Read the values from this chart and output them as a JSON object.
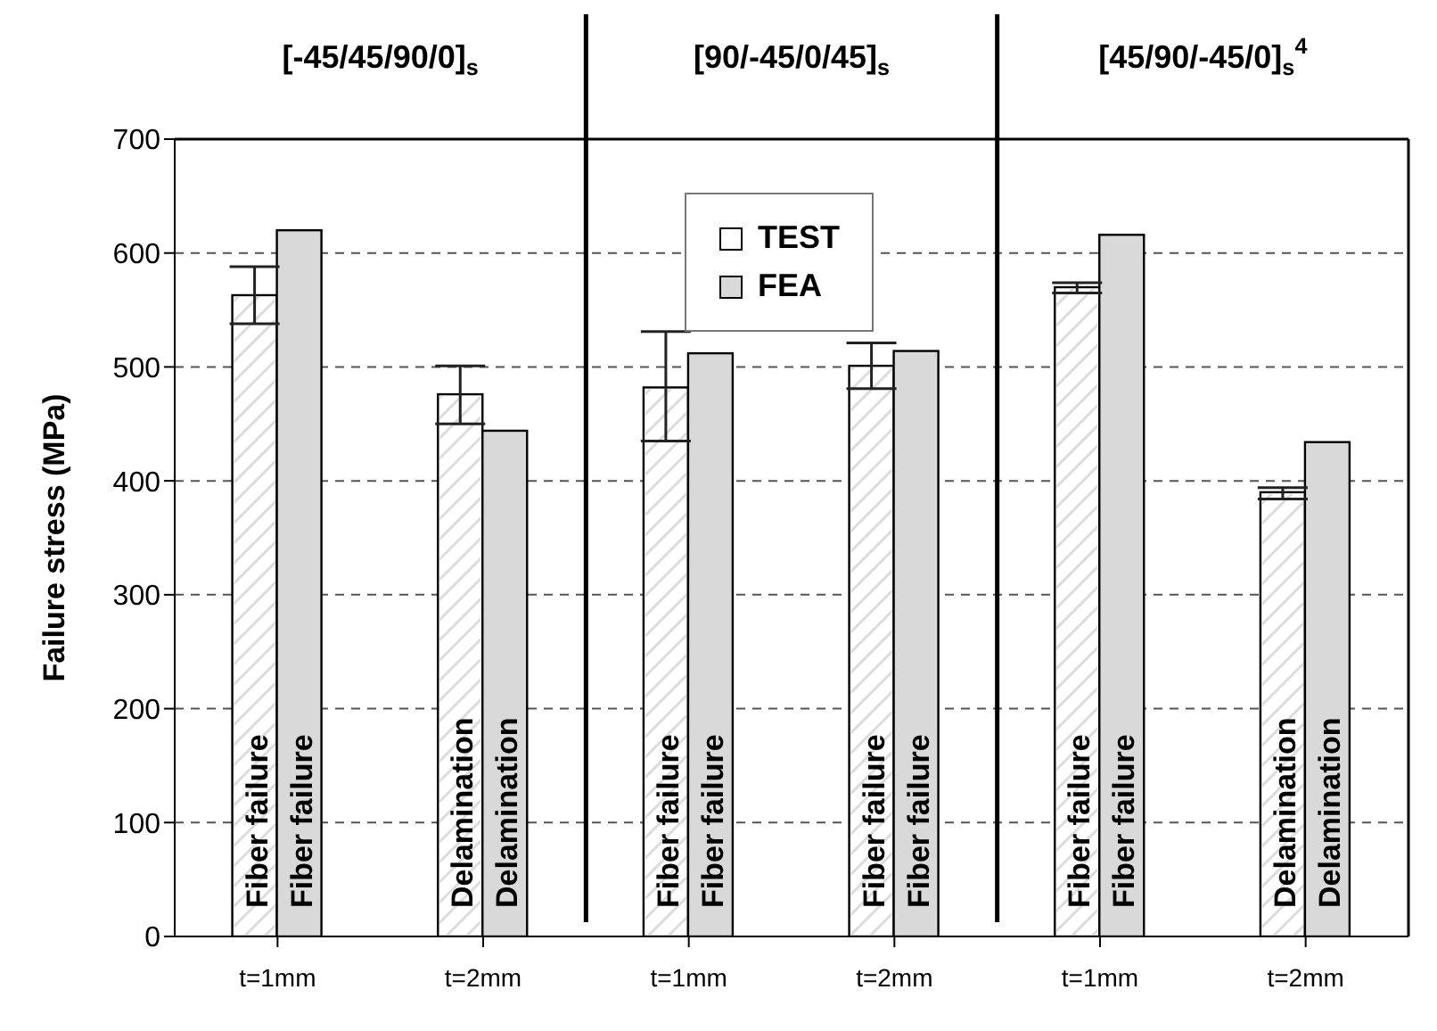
{
  "chart_data": {
    "type": "bar",
    "ylabel": "Failure stress (MPa)",
    "categories": [
      "t=1mm",
      "t=2mm",
      "t=1mm",
      "t=2mm",
      "t=1mm",
      "t=2mm"
    ],
    "series": [
      {
        "name": "TEST",
        "color": "#ffffff",
        "values": [
          563,
          476,
          482,
          501,
          570,
          390
        ],
        "errors": [
          [
            538,
            588
          ],
          [
            450,
            501
          ],
          [
            435,
            531
          ],
          [
            481,
            521
          ],
          [
            565,
            574
          ],
          [
            384,
            394
          ]
        ],
        "value_labels": [
          "Fiber failure",
          "Delamination",
          "Fiber failure",
          "Fiber failure",
          "Fiber failure",
          "Delamination"
        ]
      },
      {
        "name": "FEA",
        "color": "#d9d9d9",
        "values": [
          620,
          444,
          512,
          514,
          616,
          434
        ],
        "value_labels": [
          "Fiber failure",
          "Delamination",
          "Fiber failure",
          "Fiber failure",
          "Fiber failure",
          "Delamination"
        ]
      }
    ],
    "annotations": [
      "[-45/45/90/0]$_{s}$",
      "[90/-45/0/45]$_{s}$",
      "[45/90/-45/0]$_{s}$$^{4}$"
    ],
    "ylim": [
      0,
      700
    ],
    "yticks": [
      0,
      100,
      200,
      300,
      400,
      500,
      600,
      700
    ],
    "grid": "y",
    "legend": "top"
  }
}
